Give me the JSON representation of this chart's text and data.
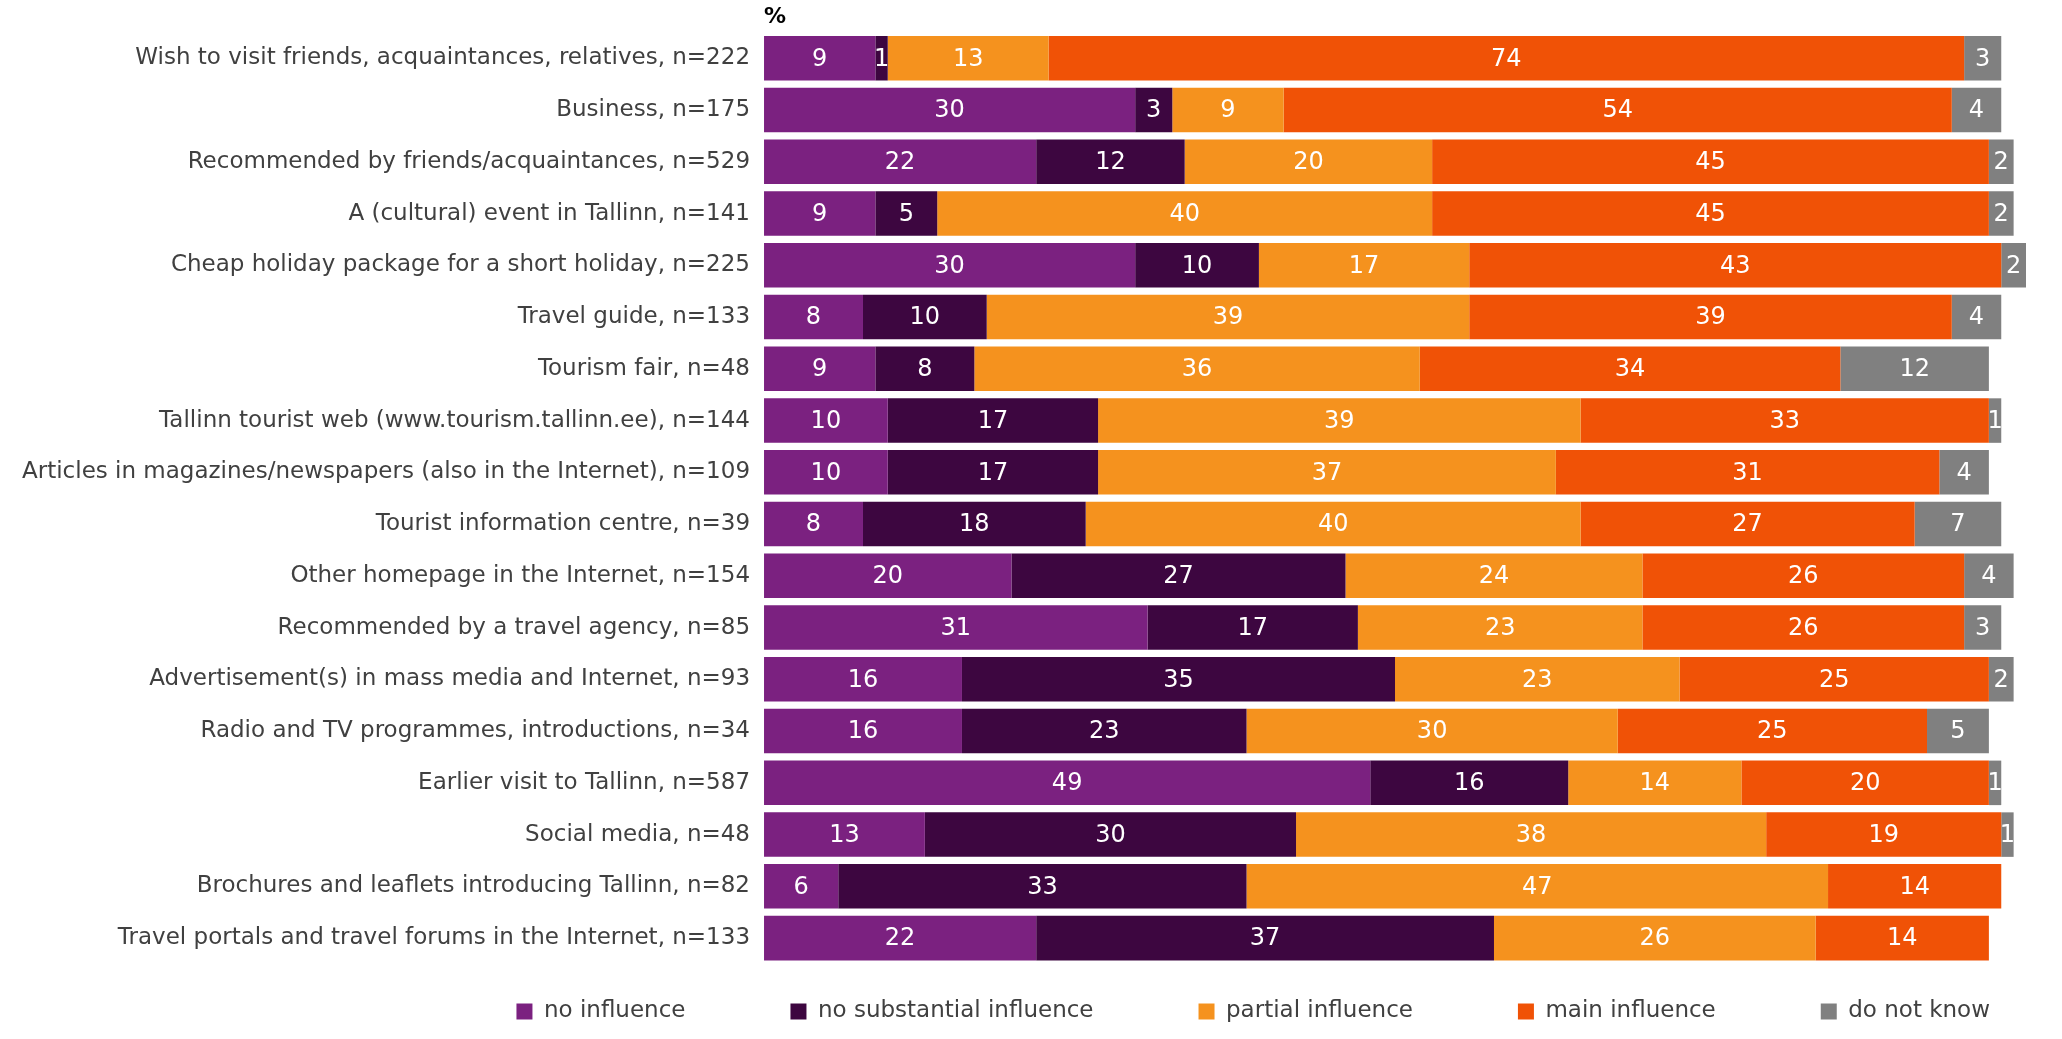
{
  "chart_data": {
    "type": "bar",
    "orientation": "horizontal",
    "stacked": true,
    "xlabel": "%",
    "categories": [
      "Wish to visit friends, acquaintances, relatives, n=222",
      "Business, n=175",
      "Recommended by friends/acquaintances, n=529",
      "A (cultural) event in Tallinn, n=141",
      "Cheap holiday package for a short holiday, n=225",
      "Travel guide, n=133",
      "Tourism fair, n=48",
      "Tallinn tourist web (www.tourism.tallinn.ee), n=144",
      "Articles in magazines/newspapers (also in the Internet), n=109",
      "Tourist information centre, n=39",
      "Other homepage in the Internet, n=154",
      "Recommended by a travel agency, n=85",
      "Advertisement(s) in mass media and Internet, n=93",
      "Radio and TV programmes, introductions, n=34",
      "Earlier visit to Tallinn, n=587",
      "Social media, n=48",
      "Brochures and leaflets introducing Tallinn, n=82",
      "Travel portals and travel forums in the Internet, n=133"
    ],
    "series": [
      {
        "name": "no influence",
        "color": "#7b2180",
        "values": [
          9,
          30,
          22,
          9,
          30,
          8,
          9,
          10,
          10,
          8,
          20,
          31,
          16,
          16,
          49,
          13,
          6,
          22
        ]
      },
      {
        "name": "no substantial influence",
        "color": "#3d0640",
        "values": [
          1,
          3,
          12,
          5,
          10,
          10,
          8,
          17,
          17,
          18,
          27,
          17,
          35,
          23,
          16,
          30,
          33,
          37
        ]
      },
      {
        "name": "partial influence",
        "color": "#f5921e",
        "values": [
          13,
          9,
          20,
          40,
          17,
          39,
          36,
          39,
          37,
          40,
          24,
          23,
          23,
          30,
          14,
          38,
          47,
          26
        ]
      },
      {
        "name": "main influence",
        "color": "#f05206",
        "values": [
          74,
          54,
          45,
          45,
          43,
          39,
          34,
          33,
          31,
          27,
          26,
          26,
          25,
          25,
          20,
          19,
          14,
          14
        ]
      },
      {
        "name": "do not know",
        "color": "#808080",
        "values": [
          3,
          4,
          2,
          2,
          2,
          4,
          12,
          1,
          4,
          7,
          4,
          3,
          2,
          5,
          1,
          1,
          null,
          null
        ]
      }
    ],
    "xlim": [
      0,
      102
    ],
    "tick_labels": "y",
    "grid": false,
    "legend": "bottom",
    "data_labels": true
  }
}
